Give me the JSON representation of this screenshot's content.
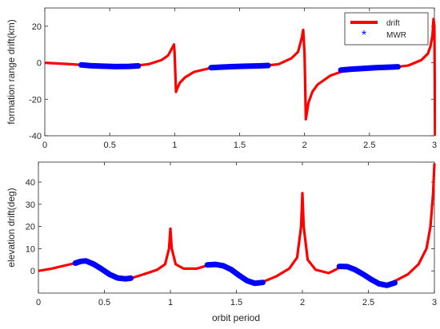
{
  "chart_data": [
    {
      "type": "line",
      "ylabel": "formation range drift(km)",
      "xlabel": "",
      "xlim": [
        0,
        3
      ],
      "ylim": [
        -40,
        30
      ],
      "xticks": [
        "0",
        "0.5",
        "1",
        "1.5",
        "2",
        "2.5",
        "3"
      ],
      "yticks": [
        "-40",
        "-20",
        "0",
        "20"
      ],
      "legend": {
        "position": "top-right",
        "entries": [
          "drift",
          "MWR"
        ]
      },
      "series": [
        {
          "name": "drift",
          "color": "#ff0000",
          "style": "thick-line",
          "x": [
            0,
            0.1,
            0.2,
            0.3,
            0.4,
            0.5,
            0.6,
            0.7,
            0.8,
            0.9,
            0.95,
            0.98,
            0.995,
            1.0,
            1.01,
            1.02,
            1.04,
            1.08,
            1.15,
            1.3,
            1.5,
            1.7,
            1.8,
            1.9,
            1.95,
            1.98,
            1.99,
            2.0,
            2.01,
            2.03,
            2.06,
            2.1,
            2.2,
            2.3,
            2.5,
            2.7,
            2.8,
            2.9,
            2.95,
            2.97,
            2.985,
            2.993,
            3.0,
            3.005
          ],
          "y": [
            0,
            -0.4,
            -0.8,
            -1.3,
            -1.8,
            -2.1,
            -2.0,
            -1.6,
            -0.8,
            1.5,
            4,
            8,
            10,
            5,
            -16,
            -14,
            -11,
            -8,
            -5,
            -2.5,
            -2.0,
            -1.6,
            -0.8,
            2.5,
            6,
            14,
            18,
            5,
            -31,
            -22,
            -16,
            -12,
            -7,
            -4.5,
            -3.0,
            -2.4,
            -1.5,
            1.5,
            5,
            9,
            15,
            24,
            20,
            -40
          ]
        },
        {
          "name": "MWR",
          "color": "#0000ff",
          "style": "thick-marker-band",
          "segments": [
            {
              "x": [
                0.28,
                0.35,
                0.45,
                0.55,
                0.65,
                0.72
              ],
              "y": [
                -1.2,
                -1.6,
                -1.9,
                -2.1,
                -2.0,
                -1.7
              ]
            },
            {
              "x": [
                1.28,
                1.35,
                1.45,
                1.55,
                1.65,
                1.72
              ],
              "y": [
                -2.7,
                -2.4,
                -2.1,
                -1.9,
                -1.7,
                -1.5
              ]
            },
            {
              "x": [
                2.28,
                2.35,
                2.45,
                2.55,
                2.65,
                2.72
              ],
              "y": [
                -4.0,
                -3.6,
                -3.1,
                -2.7,
                -2.4,
                -2.2
              ]
            }
          ]
        }
      ]
    },
    {
      "type": "line",
      "ylabel": "elevation drift(deg)",
      "xlabel": "orbit period",
      "xlim": [
        0,
        3
      ],
      "ylim": [
        -10,
        49
      ],
      "xticks": [
        "0",
        "0.5",
        "1",
        "1.5",
        "2",
        "2.5",
        "3"
      ],
      "yticks": [
        "0",
        "10",
        "20",
        "30",
        "40"
      ],
      "series": [
        {
          "name": "drift",
          "color": "#ff0000",
          "style": "thick-line",
          "x": [
            0,
            0.1,
            0.2,
            0.28,
            0.35,
            0.45,
            0.55,
            0.65,
            0.72,
            0.8,
            0.9,
            0.96,
            0.99,
            1.0,
            1.01,
            1.04,
            1.1,
            1.2,
            1.3,
            1.4,
            1.5,
            1.6,
            1.65,
            1.72,
            1.8,
            1.9,
            1.96,
            1.99,
            2.0,
            2.01,
            2.04,
            2.1,
            2.2,
            2.3,
            2.4,
            2.5,
            2.6,
            2.65,
            2.72,
            2.8,
            2.88,
            2.94,
            2.97,
            2.99,
            3.0
          ],
          "y": [
            0,
            1.0,
            2.4,
            3.5,
            4.5,
            2.0,
            -2.0,
            -3.5,
            -3.0,
            -1.5,
            0.5,
            3,
            10,
            19,
            10,
            3,
            1.0,
            1.0,
            2.8,
            2.5,
            -1.5,
            -5.5,
            -5.5,
            -4.5,
            -2.5,
            1,
            6,
            20,
            35,
            20,
            5,
            0.5,
            -1.0,
            2.0,
            0.5,
            -3.0,
            -6.5,
            -6.0,
            -4.0,
            -1.5,
            3,
            10,
            20,
            35,
            48
          ]
        },
        {
          "name": "MWR",
          "color": "#0000ff",
          "style": "thick-marker-band",
          "segments": [
            {
              "x": [
                0.28,
                0.32,
                0.36,
                0.42,
                0.48,
                0.54,
                0.6,
                0.66,
                0.7
              ],
              "y": [
                3.5,
                4.3,
                4.5,
                3.0,
                0.8,
                -1.6,
                -3.2,
                -3.6,
                -3.3
              ]
            },
            {
              "x": [
                1.28,
                1.34,
                1.4,
                1.46,
                1.52,
                1.58,
                1.64,
                1.7
              ],
              "y": [
                2.7,
                2.9,
                2.3,
                0.6,
                -2.0,
                -4.4,
                -5.6,
                -5.2
              ]
            },
            {
              "x": [
                2.28,
                2.34,
                2.4,
                2.46,
                2.52,
                2.58,
                2.64,
                2.7
              ],
              "y": [
                2.0,
                1.9,
                0.5,
                -1.5,
                -3.8,
                -5.8,
                -6.5,
                -5.4
              ]
            }
          ]
        }
      ]
    }
  ]
}
